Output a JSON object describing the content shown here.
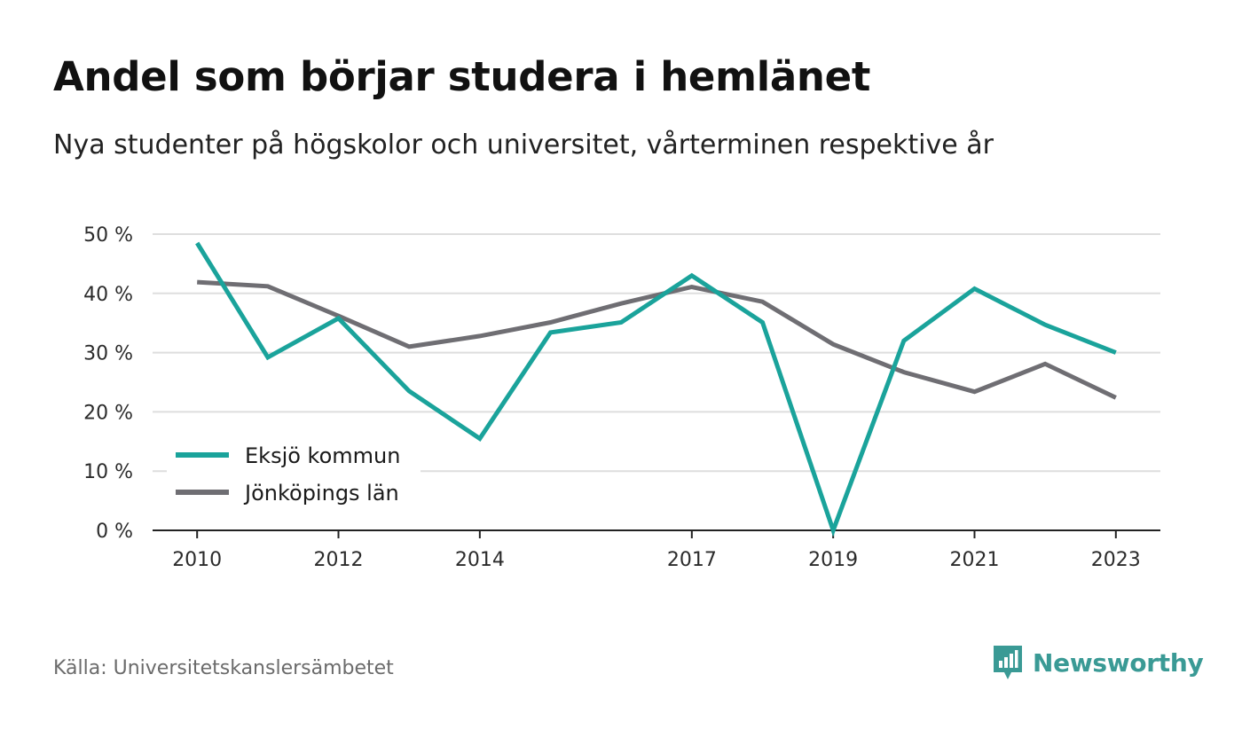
{
  "title": "Andel som börjar studera i hemlänet",
  "subtitle": "Nya studenter på högskolor och universitet, vårterminen respektive år",
  "source": "Källa: Universitetskanslersämbetet",
  "brand": {
    "name": "Newsworthy",
    "icon": "newsworthy-logo-icon",
    "color": "#3a9a95"
  },
  "chart_data": {
    "type": "line",
    "title": "Andel som börjar studera i hemlänet",
    "subtitle": "Nya studenter på högskolor och universitet, vårterminen respektive år",
    "x": [
      2010,
      2011,
      2012,
      2013,
      2014,
      2015,
      2016,
      2017,
      2018,
      2019,
      2020,
      2021,
      2022,
      2023
    ],
    "x_tick_labels": [
      "2010",
      "2012",
      "2014",
      "2017",
      "2019",
      "2021",
      "2023"
    ],
    "xlim": [
      2009.37,
      2023.63
    ],
    "ylim": [
      0,
      50
    ],
    "y_ticks": [
      0,
      10,
      20,
      30,
      40,
      50
    ],
    "y_tick_labels": [
      "0 %",
      "10 %",
      "20 %",
      "30 %",
      "40 %",
      "50 %"
    ],
    "grid": "horizontal",
    "legend_position": "bottom-left",
    "series": [
      {
        "name": "Eksjö kommun",
        "color": "#1aa39b",
        "values": [
          48.5,
          29.2,
          35.8,
          23.5,
          15.5,
          33.4,
          35.1,
          43.0,
          35.1,
          0.0,
          32.0,
          40.8,
          34.7,
          30.0
        ]
      },
      {
        "name": "Jönköpings län",
        "color": "#6f6e73",
        "values": [
          41.9,
          41.2,
          36.2,
          31.0,
          32.8,
          35.1,
          38.3,
          41.1,
          38.6,
          31.4,
          26.7,
          23.4,
          28.1,
          22.4
        ]
      }
    ]
  }
}
